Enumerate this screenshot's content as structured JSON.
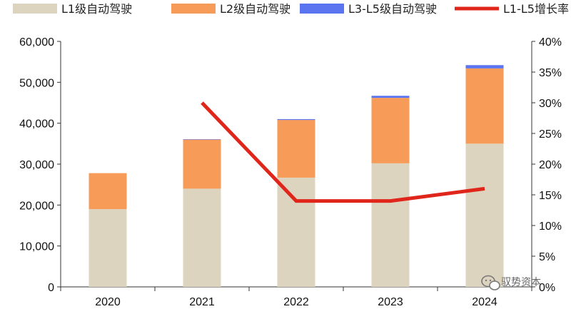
{
  "chart_data": {
    "type": "bar",
    "stacked": true,
    "categories": [
      "2020",
      "2021",
      "2022",
      "2023",
      "2024"
    ],
    "series": [
      {
        "name": "L1级自动驾驶",
        "type": "bar",
        "axis": "left",
        "color": "#ddd4bf",
        "values": [
          19000,
          24000,
          26700,
          30200,
          35000
        ]
      },
      {
        "name": "L2级自动驾驶",
        "type": "bar",
        "axis": "left",
        "color": "#f79b58",
        "values": [
          8800,
          12000,
          14100,
          16000,
          18400
        ]
      },
      {
        "name": "L3-L5级自动驾驶",
        "type": "bar",
        "axis": "left",
        "color": "#5b74f0",
        "values": [
          0,
          100,
          200,
          500,
          800
        ]
      },
      {
        "name": "L1-L5增长率",
        "type": "line",
        "axis": "right",
        "color": "#e0251b",
        "values": [
          null,
          0.3,
          0.14,
          0.14,
          0.16
        ]
      }
    ],
    "y_left": {
      "min": 0,
      "max": 60000,
      "step": 10000,
      "tick_labels": [
        "0",
        "10,000",
        "20,000",
        "30,000",
        "40,000",
        "50,000",
        "60,000"
      ]
    },
    "y_right": {
      "min": 0,
      "max": 0.4,
      "step": 0.05,
      "tick_labels": [
        "0%",
        "5%",
        "10%",
        "15%",
        "20%",
        "25%",
        "30%",
        "35%",
        "40%"
      ]
    },
    "legend_position": "top",
    "grid": false
  },
  "watermark": {
    "text": "驭势资本"
  }
}
